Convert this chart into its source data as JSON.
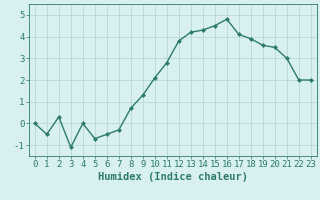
{
  "x": [
    0,
    1,
    2,
    3,
    4,
    5,
    6,
    7,
    8,
    9,
    10,
    11,
    12,
    13,
    14,
    15,
    16,
    17,
    18,
    19,
    20,
    21,
    22,
    23
  ],
  "y": [
    0.0,
    -0.5,
    0.3,
    -1.1,
    0.0,
    -0.7,
    -0.5,
    -0.3,
    0.7,
    1.3,
    2.1,
    2.8,
    3.8,
    4.2,
    4.3,
    4.5,
    4.8,
    4.1,
    3.9,
    3.6,
    3.5,
    3.0,
    2.0,
    2.0
  ],
  "line_color": "#2d7a6e",
  "marker": "D",
  "marker_size": 2.0,
  "background_color": "#d8f0f0",
  "grid_color": "#b8d8d8",
  "xlabel": "Humidex (Indice chaleur)",
  "xlim": [
    -0.5,
    23.5
  ],
  "ylim": [
    -1.5,
    5.5
  ],
  "yticks": [
    -1,
    0,
    1,
    2,
    3,
    4,
    5
  ],
  "xticks": [
    0,
    1,
    2,
    3,
    4,
    5,
    6,
    7,
    8,
    9,
    10,
    11,
    12,
    13,
    14,
    15,
    16,
    17,
    18,
    19,
    20,
    21,
    22,
    23
  ],
  "tick_color": "#2d7a6e",
  "axis_color": "#2d7a6e",
  "font_color": "#2d7a6e",
  "font_size": 6.5,
  "xlabel_fontsize": 7.5,
  "line_width": 1.0
}
